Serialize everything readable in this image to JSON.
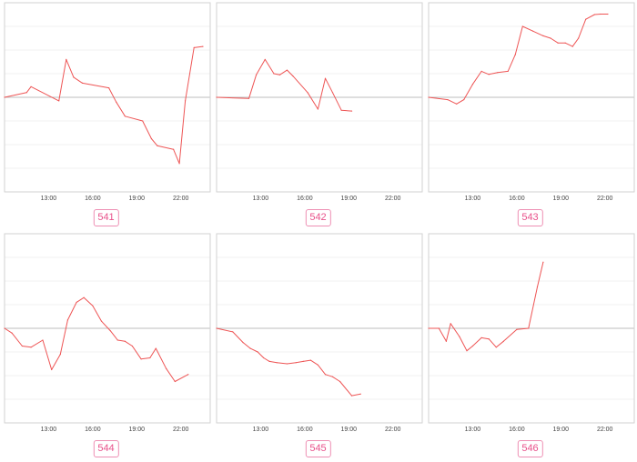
{
  "line_color": "#ee5555",
  "label_color": "#e8508a",
  "chart_data": [
    {
      "type": "line",
      "label": "541",
      "xticks": [
        "13:00",
        "16:00",
        "19:00",
        "22:00"
      ],
      "ylim": [
        -4,
        4
      ],
      "grid": true,
      "series": [
        {
          "x": [
            10.0,
            11.5,
            11.8,
            13.7,
            14.2,
            14.7,
            15.3,
            17.1,
            17.6,
            18.2,
            19.4,
            20.0,
            20.4,
            21.5,
            21.9,
            22.3,
            22.9,
            23.5
          ],
          "y": [
            0.0,
            0.2,
            0.45,
            -0.15,
            1.6,
            0.85,
            0.6,
            0.4,
            -0.2,
            -0.8,
            -1.0,
            -1.75,
            -2.05,
            -2.2,
            -2.8,
            -0.15,
            2.1,
            2.15
          ]
        }
      ]
    },
    {
      "type": "line",
      "label": "542",
      "xticks": [
        "13:00",
        "16:00",
        "19:00",
        "22:00"
      ],
      "ylim": [
        -4,
        4
      ],
      "grid": true,
      "series": [
        {
          "x": [
            10.0,
            12.2,
            12.7,
            13.3,
            13.9,
            14.3,
            14.8,
            15.2,
            16.2,
            16.9,
            17.4,
            17.9,
            18.5,
            19.2
          ],
          "y": [
            0.0,
            -0.05,
            0.95,
            1.6,
            1.0,
            0.95,
            1.15,
            0.9,
            0.2,
            -0.5,
            0.8,
            0.2,
            -0.55,
            -0.58
          ]
        }
      ]
    },
    {
      "type": "line",
      "label": "543",
      "xticks": [
        "13:00",
        "16:00",
        "19:00",
        "22:00"
      ],
      "ylim": [
        -4,
        4
      ],
      "grid": true,
      "series": [
        {
          "x": [
            10.0,
            11.3,
            11.9,
            12.4,
            13.0,
            13.6,
            14.1,
            14.7,
            15.4,
            15.9,
            16.4,
            17.1,
            17.8,
            18.3,
            18.8,
            19.3,
            19.8,
            20.2,
            20.7,
            21.3,
            21.7,
            22.2
          ],
          "y": [
            0.0,
            -0.1,
            -0.28,
            -0.1,
            0.55,
            1.1,
            0.97,
            1.05,
            1.1,
            1.8,
            3.0,
            2.8,
            2.6,
            2.5,
            2.3,
            2.3,
            2.15,
            2.5,
            3.3,
            3.5,
            3.52,
            3.52
          ]
        }
      ]
    },
    {
      "type": "line",
      "label": "544",
      "xticks": [
        "13:00",
        "16:00",
        "19:00",
        "22:00"
      ],
      "ylim": [
        -4,
        4
      ],
      "grid": true,
      "series": [
        {
          "x": [
            10.0,
            10.5,
            11.2,
            11.8,
            12.6,
            13.2,
            13.8,
            14.3,
            14.9,
            15.4,
            16.0,
            16.6,
            17.2,
            17.7,
            18.2,
            18.7,
            19.3,
            19.9,
            20.3,
            21.0,
            21.6,
            22.5
          ],
          "y": [
            0.0,
            -0.2,
            -0.75,
            -0.8,
            -0.5,
            -1.75,
            -1.1,
            0.35,
            1.1,
            1.3,
            0.95,
            0.3,
            -0.1,
            -0.5,
            -0.55,
            -0.75,
            -1.3,
            -1.25,
            -0.85,
            -1.7,
            -2.25,
            -1.95
          ]
        }
      ]
    },
    {
      "type": "line",
      "label": "545",
      "xticks": [
        "13:00",
        "16:00",
        "19:00",
        "22:00"
      ],
      "ylim": [
        -4,
        4
      ],
      "grid": true,
      "series": [
        {
          "x": [
            10.0,
            11.1,
            11.8,
            12.3,
            12.8,
            13.2,
            13.6,
            14.1,
            14.8,
            15.4,
            15.9,
            16.4,
            16.9,
            17.4,
            17.9,
            18.4,
            19.2,
            19.8
          ],
          "y": [
            0.0,
            -0.15,
            -0.6,
            -0.85,
            -1.0,
            -1.25,
            -1.4,
            -1.45,
            -1.5,
            -1.45,
            -1.4,
            -1.35,
            -1.55,
            -1.95,
            -2.05,
            -2.25,
            -2.85,
            -2.78
          ]
        }
      ]
    },
    {
      "type": "line",
      "label": "546",
      "xticks": [
        "13:00",
        "16:00",
        "19:00",
        "22:00"
      ],
      "ylim": [
        -4,
        4
      ],
      "grid": true,
      "series": [
        {
          "x": [
            10.0,
            10.7,
            11.2,
            11.5,
            12.1,
            12.6,
            13.0,
            13.6,
            14.1,
            14.6,
            15.1,
            16.0,
            16.8,
            17.4,
            17.8
          ],
          "y": [
            0.0,
            0.0,
            -0.55,
            0.2,
            -0.35,
            -0.95,
            -0.75,
            -0.4,
            -0.45,
            -0.8,
            -0.55,
            -0.05,
            0.0,
            1.75,
            2.8
          ]
        }
      ]
    }
  ]
}
